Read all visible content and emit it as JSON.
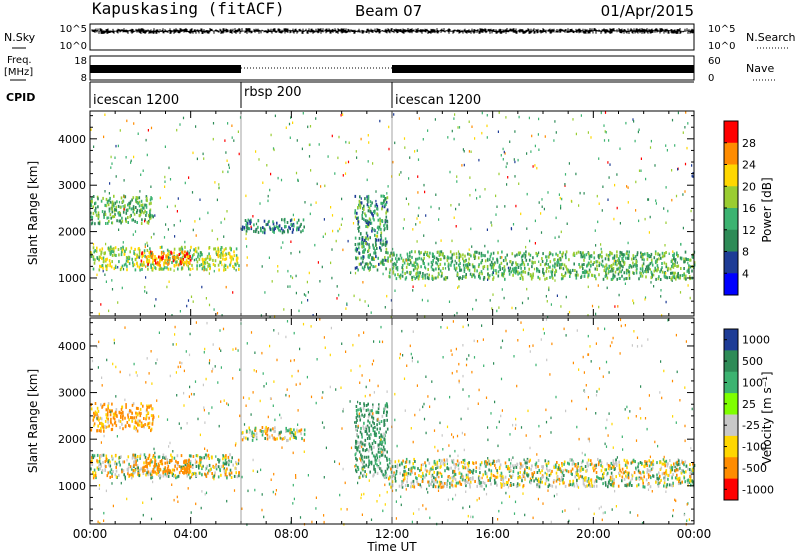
{
  "header": {
    "station": "Kapuskasing (fitACF)",
    "beam": "Beam 07",
    "date": "01/Apr/2015"
  },
  "sky_panel": {
    "label": "N.Sky",
    "right_label": "N.Search",
    "left_ticks": [
      "10^5",
      "10^0"
    ],
    "right_ticks": [
      "10^5",
      "10^0"
    ]
  },
  "freq_panel": {
    "label_line1": "Freq.",
    "label_line2": "[MHz]",
    "left_ticks": [
      "18",
      "8"
    ],
    "right_ticks": [
      "60",
      "0"
    ],
    "right_label": "Nave"
  },
  "cpid": {
    "label": "CPID",
    "segments": [
      {
        "name": "icescan 1200",
        "start_hour": 0,
        "end_hour": 6
      },
      {
        "name": "rbsp 200",
        "start_hour": 6,
        "end_hour": 12
      },
      {
        "name": "icescan 1200",
        "start_hour": 12,
        "end_hour": 24
      }
    ]
  },
  "power_panel": {
    "ylabel": "Slant Range [km]",
    "colorbar_label": "Power [dB]",
    "colorbar_ticks": [
      "28",
      "24",
      "20",
      "16",
      "12",
      "8",
      "4"
    ],
    "colors": [
      "#ff0000",
      "#ff8c00",
      "#ffd700",
      "#9acd32",
      "#3cb371",
      "#2e8b57",
      "#1e3c96",
      "#0000ff"
    ]
  },
  "velocity_panel": {
    "ylabel": "Slant Range [km]",
    "colorbar_label": "Velocity [m s⁻¹]",
    "colorbar_ticks": [
      "1000",
      "500",
      "100",
      "25",
      "-25",
      "-100",
      "-500",
      "-1000"
    ],
    "colors": [
      "#1e3c96",
      "#2e8b57",
      "#3cb371",
      "#7fff00",
      "#c8c8c8",
      "#ffd700",
      "#ff8c00",
      "#ff0000"
    ]
  },
  "x_axis": {
    "label": "Time UT",
    "ticks": [
      "00:00",
      "04:00",
      "08:00",
      "12:00",
      "16:00",
      "20:00",
      "00:00"
    ]
  },
  "chart_data": [
    {
      "type": "heatmap",
      "title": "Power",
      "xlabel": "Time UT",
      "ylabel": "Slant Range [km]",
      "xlim_hours": [
        0,
        24
      ],
      "ylim_km": [
        180,
        4600
      ],
      "yticks": [
        1000,
        2000,
        3000,
        4000
      ],
      "colorbar": {
        "label": "Power [dB]",
        "range": [
          0,
          32
        ],
        "ticks": [
          4,
          8,
          12,
          16,
          20,
          24,
          28
        ]
      },
      "features": [
        {
          "hours": [
            0.0,
            5.9
          ],
          "range_km": [
            1200,
            1700
          ],
          "value_db": 16
        },
        {
          "hours": [
            2.0,
            4.0
          ],
          "range_km": [
            1300,
            1600
          ],
          "value_db": 24
        },
        {
          "hours": [
            0.0,
            2.5
          ],
          "range_km": [
            2200,
            2800
          ],
          "value_db": 12
        },
        {
          "hours": [
            6.0,
            8.5
          ],
          "range_km": [
            2000,
            2300
          ],
          "value_db": 8
        },
        {
          "hours": [
            10.5,
            11.8
          ],
          "range_km": [
            1200,
            2800
          ],
          "value_db": 10
        },
        {
          "hours": [
            11.8,
            24.0
          ],
          "range_km": [
            1000,
            1600
          ],
          "value_db": 12
        }
      ]
    },
    {
      "type": "heatmap",
      "title": "Velocity",
      "xlabel": "Time UT",
      "ylabel": "Slant Range [km]",
      "xlim_hours": [
        0,
        24
      ],
      "ylim_km": [
        180,
        4600
      ],
      "yticks": [
        1000,
        2000,
        3000,
        4000
      ],
      "colorbar": {
        "label": "Velocity [m s⁻¹]",
        "ticks": [
          1000,
          500,
          100,
          25,
          -25,
          -100,
          -500,
          -1000
        ]
      },
      "features": [
        {
          "hours": [
            0.0,
            5.9
          ],
          "range_km": [
            1200,
            1700
          ],
          "value_ms": 0
        },
        {
          "hours": [
            2.0,
            4.0
          ],
          "range_km": [
            1300,
            1600
          ],
          "value_ms": -300
        },
        {
          "hours": [
            0.0,
            2.5
          ],
          "range_km": [
            2200,
            2800
          ],
          "value_ms": -150
        },
        {
          "hours": [
            6.0,
            8.5
          ],
          "range_km": [
            2000,
            2300
          ],
          "value_ms": 0
        },
        {
          "hours": [
            10.5,
            11.8
          ],
          "range_km": [
            1200,
            2800
          ],
          "value_ms": 150
        },
        {
          "hours": [
            11.8,
            24.0
          ],
          "range_km": [
            1000,
            1600
          ],
          "value_ms": 0
        }
      ]
    }
  ]
}
